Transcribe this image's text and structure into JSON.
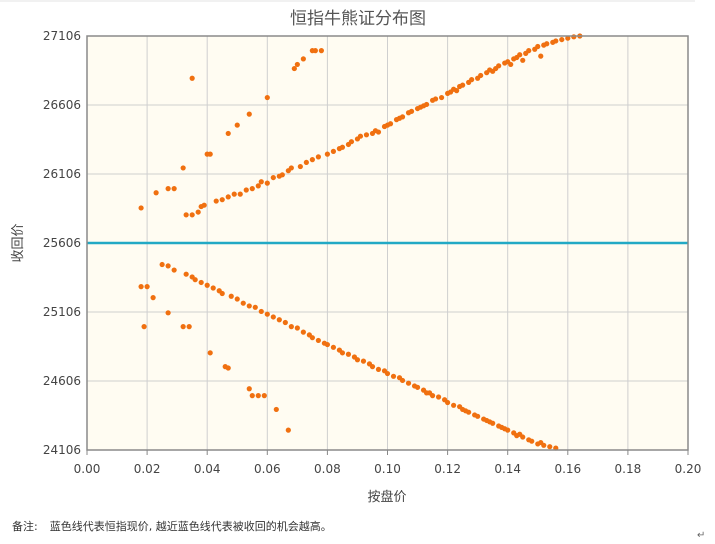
{
  "note": {
    "prefix": "备注:",
    "text": "蓝色线代表恒指现价, 越近蓝色线代表被收回的机会越高。"
  },
  "colors": {
    "plot_background": "#fffcf2",
    "grid": "#cfcfcf",
    "points": "#f07010",
    "reference_line": "#22a9c5",
    "axis": "#555555"
  },
  "chart_data": {
    "type": "scatter",
    "title": "恒指牛熊证分布图",
    "xlabel": "按盘价",
    "ylabel": "收回价",
    "xlim": [
      0,
      0.2
    ],
    "ylim": [
      24106,
      27106
    ],
    "x_ticks": [
      "0.00",
      "0.02",
      "0.04",
      "0.06",
      "0.08",
      "0.10",
      "0.12",
      "0.14",
      "0.16",
      "0.18",
      "0.20"
    ],
    "y_ticks": [
      "24106",
      "24606",
      "25106",
      "25606",
      "26106",
      "26606",
      "27106"
    ],
    "grid": true,
    "reference_line": {
      "orientation": "horizontal",
      "y": 25606
    },
    "series": [
      {
        "values": [
          [
            0.018,
            25860
          ],
          [
            0.023,
            25970
          ],
          [
            0.027,
            26000
          ],
          [
            0.029,
            26000
          ],
          [
            0.032,
            26150
          ],
          [
            0.033,
            25810
          ],
          [
            0.035,
            25810
          ],
          [
            0.035,
            26800
          ],
          [
            0.037,
            25830
          ],
          [
            0.038,
            25870
          ],
          [
            0.039,
            25880
          ],
          [
            0.04,
            26250
          ],
          [
            0.041,
            26250
          ],
          [
            0.043,
            25910
          ],
          [
            0.045,
            25920
          ],
          [
            0.047,
            26400
          ],
          [
            0.047,
            25940
          ],
          [
            0.049,
            25960
          ],
          [
            0.05,
            26460
          ],
          [
            0.051,
            25960
          ],
          [
            0.053,
            25990
          ],
          [
            0.054,
            26540
          ],
          [
            0.055,
            26000
          ],
          [
            0.057,
            26020
          ],
          [
            0.058,
            26050
          ],
          [
            0.06,
            26660
          ],
          [
            0.06,
            26040
          ],
          [
            0.062,
            26080
          ],
          [
            0.064,
            26090
          ],
          [
            0.065,
            26100
          ],
          [
            0.067,
            26130
          ],
          [
            0.068,
            26150
          ],
          [
            0.069,
            26870
          ],
          [
            0.07,
            26900
          ],
          [
            0.071,
            26160
          ],
          [
            0.072,
            26940
          ],
          [
            0.073,
            26190
          ],
          [
            0.075,
            26210
          ],
          [
            0.075,
            27000
          ],
          [
            0.076,
            27000
          ],
          [
            0.077,
            26230
          ],
          [
            0.078,
            27000
          ],
          [
            0.08,
            26250
          ],
          [
            0.082,
            26270
          ],
          [
            0.084,
            26290
          ],
          [
            0.085,
            26300
          ],
          [
            0.087,
            26320
          ],
          [
            0.088,
            26340
          ],
          [
            0.09,
            26360
          ],
          [
            0.091,
            26380
          ],
          [
            0.093,
            26390
          ],
          [
            0.095,
            26400
          ],
          [
            0.096,
            26420
          ],
          [
            0.097,
            26410
          ],
          [
            0.099,
            26450
          ],
          [
            0.1,
            26460
          ],
          [
            0.101,
            26470
          ],
          [
            0.103,
            26500
          ],
          [
            0.104,
            26510
          ],
          [
            0.105,
            26520
          ],
          [
            0.107,
            26550
          ],
          [
            0.108,
            26560
          ],
          [
            0.11,
            26580
          ],
          [
            0.112,
            26600
          ],
          [
            0.113,
            26610
          ],
          [
            0.115,
            26640
          ],
          [
            0.116,
            26650
          ],
          [
            0.118,
            26660
          ],
          [
            0.12,
            26690
          ],
          [
            0.121,
            26700
          ],
          [
            0.122,
            26720
          ],
          [
            0.124,
            26740
          ],
          [
            0.125,
            26750
          ],
          [
            0.127,
            26770
          ],
          [
            0.128,
            26790
          ],
          [
            0.13,
            26800
          ],
          [
            0.131,
            26820
          ],
          [
            0.133,
            26840
          ],
          [
            0.134,
            26860
          ],
          [
            0.136,
            26870
          ],
          [
            0.137,
            26890
          ],
          [
            0.139,
            26910
          ],
          [
            0.14,
            26920
          ],
          [
            0.142,
            26940
          ],
          [
            0.143,
            26950
          ],
          [
            0.144,
            26970
          ],
          [
            0.146,
            26980
          ],
          [
            0.147,
            27000
          ],
          [
            0.149,
            27010
          ],
          [
            0.15,
            27030
          ],
          [
            0.152,
            27040
          ],
          [
            0.153,
            27050
          ],
          [
            0.155,
            27060
          ],
          [
            0.156,
            27070
          ],
          [
            0.158,
            27080
          ],
          [
            0.16,
            27090
          ],
          [
            0.162,
            27100
          ],
          [
            0.164,
            27106
          ],
          [
            0.111,
            26590
          ],
          [
            0.123,
            26710
          ],
          [
            0.135,
            26850
          ],
          [
            0.141,
            26900
          ],
          [
            0.151,
            26960
          ],
          [
            0.145,
            26930
          ]
        ]
      },
      {
        "values": [
          [
            0.018,
            25290
          ],
          [
            0.02,
            25290
          ],
          [
            0.019,
            25000
          ],
          [
            0.022,
            25210
          ],
          [
            0.025,
            25450
          ],
          [
            0.027,
            25440
          ],
          [
            0.027,
            25100
          ],
          [
            0.029,
            25410
          ],
          [
            0.032,
            25000
          ],
          [
            0.034,
            25000
          ],
          [
            0.033,
            25380
          ],
          [
            0.035,
            25360
          ],
          [
            0.036,
            25340
          ],
          [
            0.038,
            25320
          ],
          [
            0.04,
            25300
          ],
          [
            0.041,
            24810
          ],
          [
            0.042,
            25280
          ],
          [
            0.044,
            25260
          ],
          [
            0.045,
            25240
          ],
          [
            0.046,
            24710
          ],
          [
            0.047,
            24700
          ],
          [
            0.048,
            25220
          ],
          [
            0.05,
            25200
          ],
          [
            0.052,
            25170
          ],
          [
            0.054,
            25150
          ],
          [
            0.054,
            24550
          ],
          [
            0.055,
            24500
          ],
          [
            0.056,
            25140
          ],
          [
            0.057,
            24500
          ],
          [
            0.058,
            25110
          ],
          [
            0.059,
            24500
          ],
          [
            0.06,
            25090
          ],
          [
            0.062,
            25070
          ],
          [
            0.063,
            24400
          ],
          [
            0.064,
            25050
          ],
          [
            0.066,
            25030
          ],
          [
            0.067,
            24250
          ],
          [
            0.068,
            25000
          ],
          [
            0.07,
            24990
          ],
          [
            0.072,
            24960
          ],
          [
            0.074,
            24940
          ],
          [
            0.075,
            24920
          ],
          [
            0.077,
            24900
          ],
          [
            0.079,
            24880
          ],
          [
            0.08,
            24870
          ],
          [
            0.082,
            24850
          ],
          [
            0.084,
            24830
          ],
          [
            0.085,
            24810
          ],
          [
            0.087,
            24800
          ],
          [
            0.089,
            24780
          ],
          [
            0.09,
            24760
          ],
          [
            0.092,
            24750
          ],
          [
            0.094,
            24730
          ],
          [
            0.095,
            24710
          ],
          [
            0.097,
            24690
          ],
          [
            0.099,
            24680
          ],
          [
            0.1,
            24660
          ],
          [
            0.102,
            24640
          ],
          [
            0.104,
            24630
          ],
          [
            0.105,
            24610
          ],
          [
            0.107,
            24590
          ],
          [
            0.109,
            24570
          ],
          [
            0.11,
            24560
          ],
          [
            0.112,
            24540
          ],
          [
            0.114,
            24520
          ],
          [
            0.115,
            24500
          ],
          [
            0.117,
            24490
          ],
          [
            0.119,
            24470
          ],
          [
            0.12,
            24450
          ],
          [
            0.122,
            24430
          ],
          [
            0.124,
            24420
          ],
          [
            0.125,
            24400
          ],
          [
            0.127,
            24380
          ],
          [
            0.129,
            24360
          ],
          [
            0.13,
            24350
          ],
          [
            0.132,
            24330
          ],
          [
            0.134,
            24310
          ],
          [
            0.135,
            24300
          ],
          [
            0.137,
            24280
          ],
          [
            0.139,
            24260
          ],
          [
            0.14,
            24250
          ],
          [
            0.142,
            24230
          ],
          [
            0.143,
            24210
          ],
          [
            0.145,
            24200
          ],
          [
            0.147,
            24180
          ],
          [
            0.148,
            24170
          ],
          [
            0.15,
            24150
          ],
          [
            0.152,
            24140
          ],
          [
            0.154,
            24130
          ],
          [
            0.156,
            24120
          ],
          [
            0.113,
            24520
          ],
          [
            0.126,
            24390
          ],
          [
            0.138,
            24270
          ],
          [
            0.133,
            24320
          ],
          [
            0.144,
            24220
          ],
          [
            0.151,
            24160
          ]
        ]
      }
    ]
  }
}
